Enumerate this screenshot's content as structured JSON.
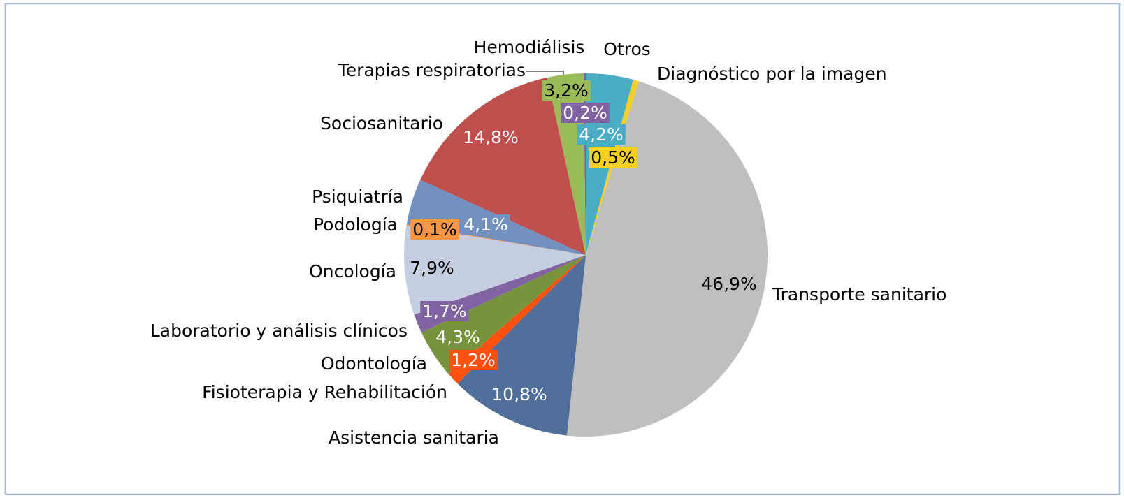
{
  "chart_data": {
    "type": "pie",
    "categories": [
      "Otros",
      "Diagnóstico por la imagen",
      "Transporte sanitario",
      "Asistencia sanitaria",
      "Fisioterapia y Rehabilitación",
      "Odontología",
      "Laboratorio y análisis clínicos",
      "Oncología",
      "Podología",
      "Psiquiatría",
      "Sociosanitario",
      "Terapias respiratorias",
      "Hemodiálisis"
    ],
    "values": [
      4.2,
      0.5,
      46.9,
      10.8,
      1.2,
      4.3,
      1.7,
      7.9,
      0.1,
      4.1,
      14.8,
      3.2,
      0.2
    ],
    "value_labels": [
      "4,2%",
      "0,5%",
      "46,9%",
      "10,8%",
      "1,2%",
      "4,3%",
      "1,7%",
      "7,9%",
      "0,1%",
      "4,1%",
      "14,8%",
      "3,2%",
      "0,2%"
    ],
    "colors": [
      "#4bacc6",
      "#f5d020",
      "#bfbfbf",
      "#4f6e9a",
      "#ff5010",
      "#77933c",
      "#8064a2",
      "#c5cee0",
      "#f79646",
      "#7290c0",
      "#c0504d",
      "#9bbb59",
      "#8064a2"
    ]
  }
}
